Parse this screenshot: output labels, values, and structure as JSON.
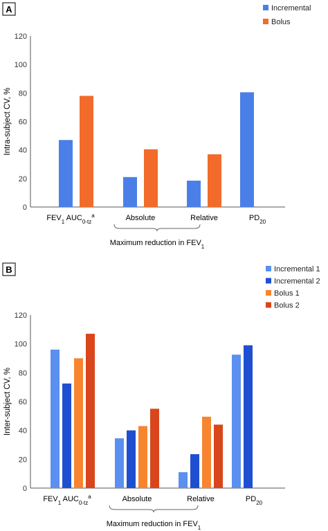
{
  "chart_data": [
    {
      "panel_label": "A",
      "type": "bar",
      "ylabel": "Intra-subject CV, %",
      "ylim": [
        0,
        120
      ],
      "yticks": [
        "0",
        "20",
        "40",
        "60",
        "80",
        "100",
        "120"
      ],
      "categories": [
        "FEV₁ AUC₀₋ₜᶻᵃ",
        "Absolute",
        "Relative",
        "PD₂₀"
      ],
      "category_parts": [
        {
          "base": "FEV",
          "sub": "1",
          "mid": " AUC",
          "sub2": "0-tz",
          "sup": "a"
        },
        {
          "base": "Absolute"
        },
        {
          "base": "Relative"
        },
        {
          "base": "PD",
          "sub": "20"
        }
      ],
      "group_label": {
        "base": "Maximum reduction in FEV",
        "sub": "1"
      },
      "legend_position": "top-right",
      "series": [
        {
          "name": "Incremental",
          "color": "#4a7fe8",
          "values": [
            47,
            21,
            18.5,
            80.5
          ]
        },
        {
          "name": "Bolus",
          "color": "#f26b2a",
          "values": [
            78,
            40.5,
            37,
            null
          ]
        }
      ]
    },
    {
      "panel_label": "B",
      "type": "bar",
      "ylabel": "Inter-subject CV, %",
      "ylim": [
        0,
        120
      ],
      "yticks": [
        "0",
        "20",
        "40",
        "60",
        "80",
        "100",
        "120"
      ],
      "categories": [
        "FEV₁ AUC₀₋ₜᶻᵃ",
        "Absolute",
        "Relative",
        "PD₂₀"
      ],
      "category_parts": [
        {
          "base": "FEV",
          "sub": "1",
          "mid": " AUC",
          "sub2": "0-tz",
          "sup": "a"
        },
        {
          "base": "Absolute"
        },
        {
          "base": "Relative"
        },
        {
          "base": "PD",
          "sub": "20"
        }
      ],
      "group_label": {
        "base": "Maximum reduction in FEV",
        "sub": "1"
      },
      "legend_position": "top-right",
      "series": [
        {
          "name": "Incremental 1",
          "color": "#5b8ff0",
          "values": [
            96,
            34.5,
            11,
            92.5
          ]
        },
        {
          "name": "Incremental 2",
          "color": "#1f4fd1",
          "values": [
            72.5,
            40,
            23.5,
            99
          ]
        },
        {
          "name": "Bolus 1",
          "color": "#f7852f",
          "values": [
            90,
            43,
            49.5,
            null
          ]
        },
        {
          "name": "Bolus 2",
          "color": "#d9461b",
          "values": [
            107,
            55,
            44,
            null
          ]
        }
      ]
    }
  ]
}
